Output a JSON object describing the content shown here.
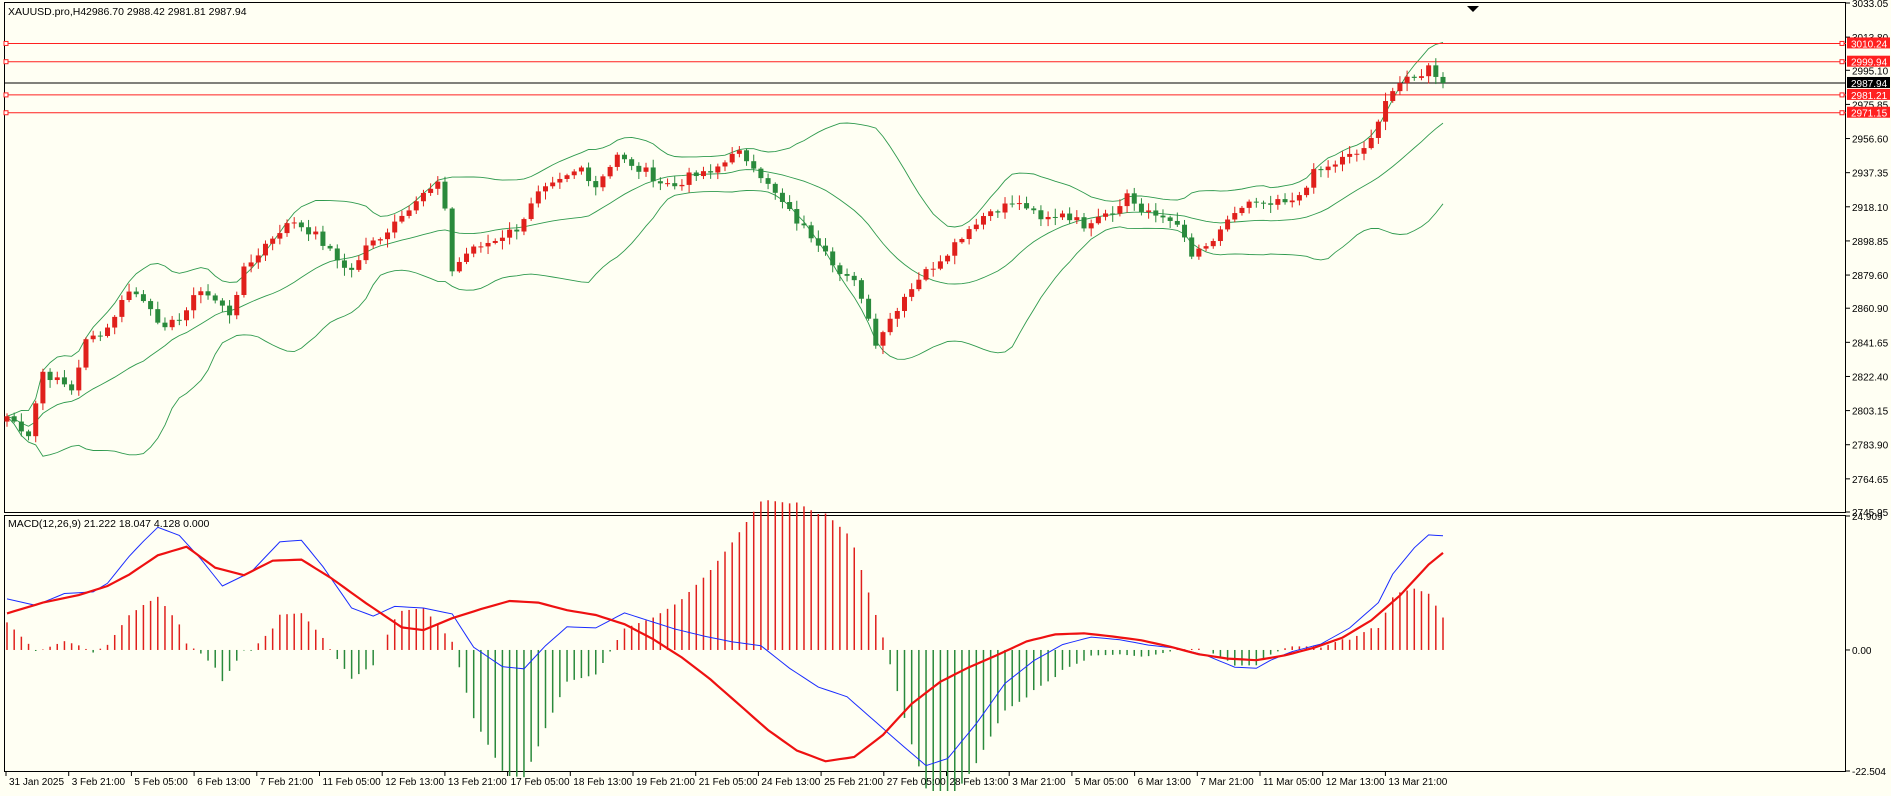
{
  "header": {
    "title": "XAUUSD.pro,H4",
    "ohlc": "2986.70 2988.42 2981.81 2987.94"
  },
  "macd": {
    "label": "MACD(12,26,9) 21.222 18.047 4.128 0.000"
  },
  "colors": {
    "background": "#fffff3",
    "up_candle": "#e0201c",
    "down_candle": "#2a8a3c",
    "bands": "#2f9a4e",
    "level_line": "#ff2020",
    "price_line": "#000000",
    "macd_line": "#1a2cff",
    "signal_line": "#ee1111",
    "hist_up": "#e0201c",
    "hist_down": "#2a8a3c"
  },
  "price_axis": {
    "ticks": [
      "3033.05",
      "3013.80",
      "2995.10",
      "2975.85",
      "2956.60",
      "2937.35",
      "2918.10",
      "2898.85",
      "2879.60",
      "2860.90",
      "2841.65",
      "2822.40",
      "2803.15",
      "2783.90",
      "2764.65",
      "2745.95"
    ],
    "levels": [
      {
        "label": "3010.24",
        "value": 3010.24
      },
      {
        "label": "2999.94",
        "value": 2999.94
      },
      {
        "label": "2981.21",
        "value": 2981.21
      },
      {
        "label": "2971.15",
        "value": 2971.15
      }
    ],
    "current": {
      "label": "2987.94",
      "value": 2987.94
    }
  },
  "macd_axis": {
    "ticks": [
      {
        "label": "24.909",
        "value": 24.909
      },
      {
        "label": "0.00",
        "value": 0
      },
      {
        "label": "-22.504",
        "value": -22.504
      }
    ]
  },
  "time_axis": {
    "labels": [
      "31 Jan 2025",
      "3 Feb 21:00",
      "5 Feb 05:00",
      "6 Feb 13:00",
      "7 Feb 21:00",
      "11 Feb 05:00",
      "12 Feb 13:00",
      "13 Feb 21:00",
      "17 Feb 05:00",
      "18 Feb 13:00",
      "19 Feb 21:00",
      "21 Feb 05:00",
      "24 Feb 13:00",
      "25 Feb 21:00",
      "27 Feb 05:00",
      "28 Feb 13:00",
      "3 Mar 21:00",
      "5 Mar 05:00",
      "6 Mar 13:00",
      "7 Mar 21:00",
      "11 Mar 05:00",
      "12 Mar 13:00",
      "13 Mar 21:00"
    ]
  },
  "chart_data": {
    "type": "candlestick",
    "symbol": "XAUUSD.pro",
    "timeframe": "H4",
    "ylim": [
      2745.95,
      3033.05
    ],
    "macd_ylim": [
      -22.504,
      24.909
    ],
    "close_path": [
      [
        0,
        2800
      ],
      [
        3,
        2790
      ],
      [
        5,
        2825
      ],
      [
        9,
        2815
      ],
      [
        11,
        2842
      ],
      [
        14,
        2850
      ],
      [
        17,
        2872
      ],
      [
        19,
        2865
      ],
      [
        20,
        2862
      ],
      [
        22,
        2848
      ],
      [
        25,
        2860
      ],
      [
        27,
        2872
      ],
      [
        31,
        2858
      ],
      [
        33,
        2882
      ],
      [
        36,
        2897
      ],
      [
        38,
        2905
      ],
      [
        40,
        2910
      ],
      [
        43,
        2902
      ],
      [
        46,
        2888
      ],
      [
        48,
        2882
      ],
      [
        50,
        2895
      ],
      [
        53,
        2905
      ],
      [
        55,
        2915
      ],
      [
        58,
        2925
      ],
      [
        60,
        2930
      ],
      [
        61,
        2918
      ],
      [
        62,
        2882
      ],
      [
        64,
        2892
      ],
      [
        67,
        2898
      ],
      [
        69,
        2902
      ],
      [
        71,
        2906
      ],
      [
        74,
        2925
      ],
      [
        77,
        2932
      ],
      [
        80,
        2940
      ],
      [
        82,
        2930
      ],
      [
        85,
        2948
      ],
      [
        87,
        2940
      ],
      [
        89,
        2938
      ],
      [
        91,
        2932
      ],
      [
        93,
        2930
      ],
      [
        95,
        2935
      ],
      [
        98,
        2937
      ],
      [
        100,
        2945
      ],
      [
        102,
        2948
      ],
      [
        104,
        2942
      ],
      [
        106,
        2930
      ],
      [
        108,
        2920
      ],
      [
        110,
        2910
      ],
      [
        112,
        2902
      ],
      [
        114,
        2895
      ],
      [
        116,
        2880
      ],
      [
        118,
        2875
      ],
      [
        119,
        2868
      ],
      [
        120,
        2855
      ],
      [
        121,
        2842
      ],
      [
        123,
        2855
      ],
      [
        125,
        2868
      ],
      [
        127,
        2878
      ],
      [
        129,
        2885
      ],
      [
        131,
        2893
      ],
      [
        133,
        2902
      ],
      [
        135,
        2910
      ],
      [
        137,
        2916
      ],
      [
        140,
        2920
      ],
      [
        142,
        2918
      ],
      [
        144,
        2910
      ],
      [
        147,
        2915
      ],
      [
        150,
        2908
      ],
      [
        152,
        2914
      ],
      [
        155,
        2918
      ],
      [
        156,
        2926
      ],
      [
        158,
        2915
      ],
      [
        160,
        2913
      ],
      [
        162,
        2912
      ],
      [
        164,
        2900
      ],
      [
        165,
        2890
      ],
      [
        167,
        2895
      ],
      [
        169,
        2903
      ],
      [
        171,
        2915
      ],
      [
        173,
        2920
      ],
      [
        175,
        2918
      ],
      [
        177,
        2920
      ],
      [
        179,
        2920
      ],
      [
        180,
        2925
      ],
      [
        182,
        2937
      ],
      [
        184,
        2940
      ],
      [
        186,
        2945
      ],
      [
        188,
        2948
      ],
      [
        190,
        2955
      ],
      [
        191,
        2965
      ],
      [
        192,
        2980
      ],
      [
        194,
        2988
      ],
      [
        196,
        2990
      ],
      [
        198,
        2997
      ],
      [
        199,
        2993
      ],
      [
        200,
        2987.94
      ]
    ],
    "macd_path": [
      [
        0,
        9.5
      ],
      [
        4,
        8.3
      ],
      [
        8,
        10.5
      ],
      [
        12,
        10.8
      ],
      [
        14,
        12.4
      ],
      [
        17,
        17.4
      ],
      [
        19,
        20.2
      ],
      [
        21,
        22.8
      ],
      [
        24,
        21.3
      ],
      [
        27,
        16.9
      ],
      [
        30,
        11.9
      ],
      [
        34,
        14.5
      ],
      [
        38,
        20.1
      ],
      [
        41,
        20.4
      ],
      [
        44,
        15.5
      ],
      [
        48,
        7.8
      ],
      [
        51,
        6.3
      ],
      [
        54,
        8.1
      ],
      [
        58,
        7.8
      ],
      [
        62,
        6.7
      ],
      [
        65,
        0.5
      ],
      [
        69,
        -3.1
      ],
      [
        72,
        -3.5
      ],
      [
        75,
        0.8
      ],
      [
        78,
        4.3
      ],
      [
        82,
        4.1
      ],
      [
        86,
        6.9
      ],
      [
        89,
        5.6
      ],
      [
        93,
        3.9
      ],
      [
        97,
        2.6
      ],
      [
        101,
        1.5
      ],
      [
        105,
        0.8
      ],
      [
        109,
        -3.4
      ],
      [
        113,
        -6.9
      ],
      [
        117,
        -8.7
      ],
      [
        121,
        -13.4
      ],
      [
        125,
        -18.1
      ],
      [
        128,
        -21.5
      ],
      [
        131,
        -20.2
      ],
      [
        135,
        -13.7
      ],
      [
        139,
        -6.2
      ],
      [
        143,
        -2.0
      ],
      [
        147,
        1.0
      ],
      [
        151,
        2.4
      ],
      [
        155,
        1.9
      ],
      [
        159,
        0.9
      ],
      [
        163,
        0.3
      ],
      [
        167,
        -1.0
      ],
      [
        171,
        -3.2
      ],
      [
        174,
        -3.4
      ],
      [
        176,
        -1.9
      ],
      [
        179,
        -0.3
      ],
      [
        183,
        1.1
      ],
      [
        187,
        4.1
      ],
      [
        191,
        8.8
      ],
      [
        193,
        14.1
      ],
      [
        196,
        19.0
      ],
      [
        198,
        21.4
      ],
      [
        200,
        21.222
      ]
    ],
    "signal_path": [
      [
        0,
        6.8
      ],
      [
        5,
        8.8
      ],
      [
        10,
        10.2
      ],
      [
        14,
        11.9
      ],
      [
        17,
        14.0
      ],
      [
        21,
        17.6
      ],
      [
        25,
        19.2
      ],
      [
        29,
        15.3
      ],
      [
        33,
        13.9
      ],
      [
        37,
        16.6
      ],
      [
        41,
        16.8
      ],
      [
        45,
        13.5
      ],
      [
        50,
        8.7
      ],
      [
        55,
        4.2
      ],
      [
        58,
        3.7
      ],
      [
        62,
        5.9
      ],
      [
        66,
        7.6
      ],
      [
        70,
        9.1
      ],
      [
        74,
        8.8
      ],
      [
        78,
        7.4
      ],
      [
        82,
        6.5
      ],
      [
        86,
        4.8
      ],
      [
        90,
        2.0
      ],
      [
        94,
        -1.4
      ],
      [
        98,
        -5.5
      ],
      [
        102,
        -10.2
      ],
      [
        106,
        -14.9
      ],
      [
        110,
        -18.7
      ],
      [
        114,
        -20.7
      ],
      [
        118,
        -19.9
      ],
      [
        122,
        -15.8
      ],
      [
        126,
        -10.0
      ],
      [
        130,
        -5.9
      ],
      [
        134,
        -3.2
      ],
      [
        138,
        -0.9
      ],
      [
        142,
        1.6
      ],
      [
        146,
        2.9
      ],
      [
        150,
        3.1
      ],
      [
        154,
        2.5
      ],
      [
        158,
        1.8
      ],
      [
        162,
        0.6
      ],
      [
        166,
        -0.8
      ],
      [
        170,
        -1.6
      ],
      [
        174,
        -1.9
      ],
      [
        178,
        -1.0
      ],
      [
        182,
        0.4
      ],
      [
        186,
        2.3
      ],
      [
        190,
        5.5
      ],
      [
        194,
        10.1
      ],
      [
        198,
        15.9
      ],
      [
        200,
        18.047
      ]
    ]
  }
}
